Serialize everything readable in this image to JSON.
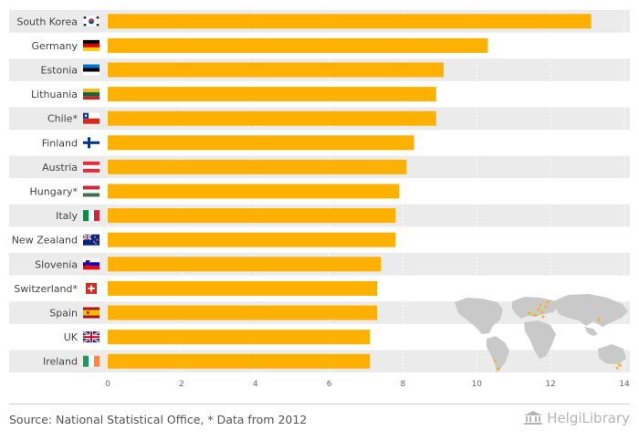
{
  "chart_data": {
    "type": "bar",
    "orientation": "horizontal",
    "title": "",
    "xlabel": "",
    "ylabel": "",
    "xlim": [
      0,
      14
    ],
    "x_ticks": [
      0,
      2,
      4,
      6,
      8,
      10,
      12,
      14
    ],
    "grid": true,
    "bar_color": "#FFB000",
    "stripe_color": "#EBEBEB",
    "categories": [
      "South Korea",
      "Germany",
      "Estonia",
      "Lithuania",
      "Chile*",
      "Finland",
      "Austria",
      "Hungary*",
      "Italy",
      "New Zealand",
      "Slovenia",
      "Switzerland*",
      "Spain",
      "UK",
      "Ireland"
    ],
    "values": [
      13.1,
      10.3,
      9.1,
      8.9,
      8.9,
      8.3,
      8.1,
      7.9,
      7.8,
      7.8,
      7.4,
      7.3,
      7.3,
      7.1,
      7.1
    ],
    "flags": [
      "kr",
      "de",
      "ee",
      "lt",
      "cl",
      "fi",
      "at",
      "hu",
      "it",
      "nz",
      "si",
      "ch",
      "es",
      "gb",
      "ie"
    ]
  },
  "footer": {
    "source": "Source: National Statistical Office, * Data from 2012",
    "brand": "HelgiLibrary"
  }
}
